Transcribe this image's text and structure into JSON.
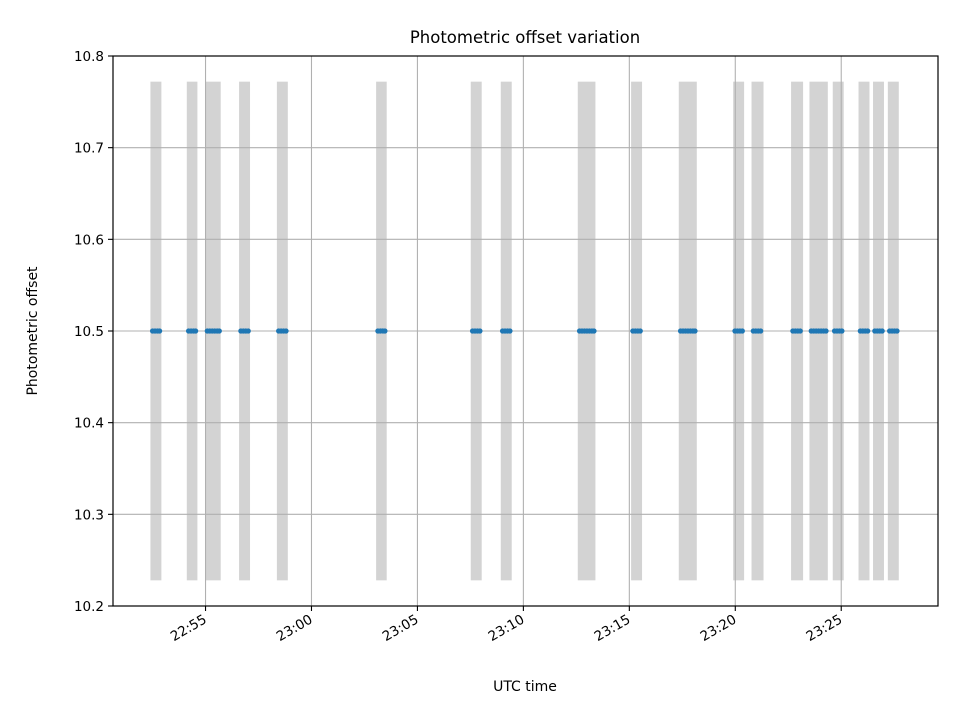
{
  "chart_data": {
    "type": "scatter",
    "title": "Photometric offset variation",
    "xlabel": "UTC time",
    "ylabel": "Photometric offset",
    "ylim": [
      10.2,
      10.8
    ],
    "yticks": [
      "10.2",
      "10.3",
      "10.4",
      "10.5",
      "10.6",
      "10.7",
      "10.8"
    ],
    "xlim": [
      "22:50:38",
      "23:29:34"
    ],
    "xticks": [
      "22:55",
      "23:00",
      "23:05",
      "23:10",
      "23:15",
      "23:20",
      "23:25"
    ],
    "xtick_rotation_deg": 30,
    "grid": true,
    "colors": {
      "points": "#1f77b4",
      "bands": "#d3d3d3",
      "grid": "#b0b0b0"
    },
    "bands": {
      "y_range": [
        10.228,
        10.772
      ],
      "intervals": [
        [
          "22:52:24",
          "22:52:55"
        ],
        [
          "22:54:07",
          "22:54:37"
        ],
        [
          "22:55:00",
          "22:55:43"
        ],
        [
          "22:56:35",
          "22:57:06"
        ],
        [
          "22:58:22",
          "22:58:53"
        ],
        [
          "23:03:03",
          "23:03:33"
        ],
        [
          "23:07:31",
          "23:08:02"
        ],
        [
          "23:08:56",
          "23:09:27"
        ],
        [
          "23:12:34",
          "23:13:24"
        ],
        [
          "23:15:05",
          "23:15:36"
        ],
        [
          "23:17:20",
          "23:18:11"
        ],
        [
          "23:19:54",
          "23:20:25"
        ],
        [
          "23:20:46",
          "23:21:20"
        ],
        [
          "23:22:38",
          "23:23:12"
        ],
        [
          "23:23:30",
          "23:24:22"
        ],
        [
          "23:24:36",
          "23:25:07"
        ],
        [
          "23:25:49",
          "23:26:20"
        ],
        [
          "23:26:30",
          "23:27:01"
        ],
        [
          "23:27:12",
          "23:27:43"
        ]
      ]
    },
    "series": [
      {
        "y": 10.5,
        "x": [
          "22:52:30",
          "22:52:37",
          "22:52:44",
          "22:52:50",
          "22:54:12",
          "22:54:19",
          "22:54:26",
          "22:54:32",
          "22:55:05",
          "22:55:12",
          "22:55:19",
          "22:55:26",
          "22:55:33",
          "22:55:39",
          "22:56:40",
          "22:56:47",
          "22:56:54",
          "22:57:01",
          "22:58:27",
          "22:58:34",
          "22:58:41",
          "22:58:48",
          "23:03:08",
          "23:03:15",
          "23:03:22",
          "23:03:28",
          "23:07:36",
          "23:07:43",
          "23:07:50",
          "23:07:57",
          "23:09:01",
          "23:09:08",
          "23:09:15",
          "23:09:22",
          "23:12:39",
          "23:12:46",
          "23:12:53",
          "23:13:00",
          "23:13:07",
          "23:13:14",
          "23:13:20",
          "23:15:10",
          "23:15:17",
          "23:15:24",
          "23:15:31",
          "23:17:25",
          "23:17:32",
          "23:17:39",
          "23:17:46",
          "23:17:53",
          "23:18:00",
          "23:18:06",
          "23:19:59",
          "23:20:06",
          "23:20:13",
          "23:20:20",
          "23:20:51",
          "23:20:58",
          "23:21:05",
          "23:21:12",
          "23:22:43",
          "23:22:50",
          "23:22:57",
          "23:23:04",
          "23:23:35",
          "23:23:42",
          "23:23:49",
          "23:23:56",
          "23:24:03",
          "23:24:10",
          "23:24:17",
          "23:24:41",
          "23:24:48",
          "23:24:55",
          "23:25:02",
          "23:25:54",
          "23:26:01",
          "23:26:08",
          "23:26:15",
          "23:26:35",
          "23:26:42",
          "23:26:49",
          "23:26:56",
          "23:27:17",
          "23:27:24",
          "23:27:31",
          "23:27:38"
        ]
      }
    ]
  }
}
